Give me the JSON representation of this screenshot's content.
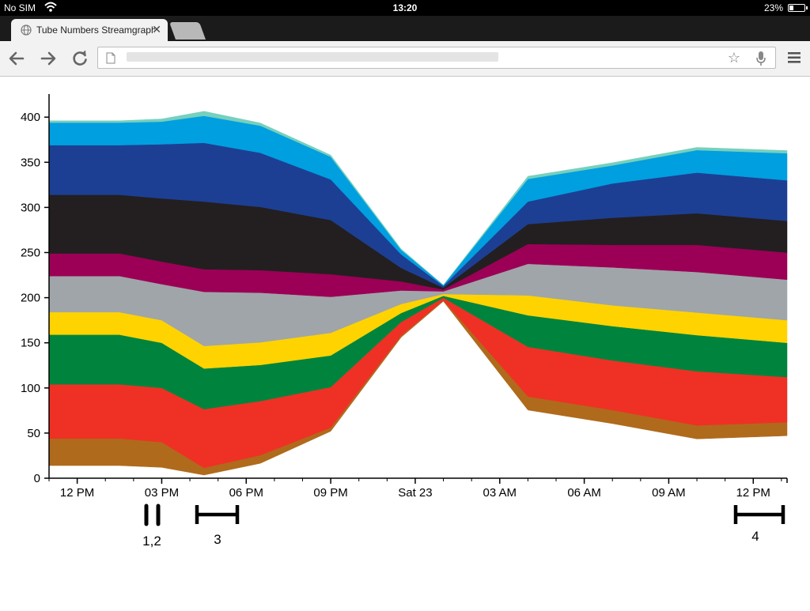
{
  "status_bar": {
    "carrier": "No SIM",
    "time": "13:20",
    "battery": "23%"
  },
  "browser": {
    "tab_title": "Tube Numbers Streamgraph",
    "close_glyph": "✕",
    "star_glyph": "☆",
    "icons": {
      "back": "back-arrow-icon",
      "forward": "forward-arrow-icon",
      "reload": "reload-icon",
      "page": "page-icon",
      "bookmark": "star-icon",
      "voice": "microphone-icon",
      "menu": "menu-icon",
      "favicon": "globe-icon"
    }
  },
  "annotations": [
    "1,2",
    "3",
    "4"
  ],
  "chart_data": {
    "type": "area",
    "y_ticks": [
      0,
      50,
      100,
      150,
      200,
      250,
      300,
      350,
      400
    ],
    "x_tick_labels": [
      "12 PM",
      "03 PM",
      "06 PM",
      "09 PM",
      "Sat 23",
      "03 AM",
      "06 AM",
      "09 AM",
      "12 PM"
    ],
    "x_range_hours": [
      11,
      37.2
    ],
    "ylim": [
      0,
      420
    ],
    "center": 205,
    "series": [
      {
        "color": "#b06a1c",
        "values": [
          30,
          30,
          28,
          8,
          9,
          4,
          2,
          1,
          15,
          15,
          15,
          15
        ]
      },
      {
        "color": "#ee3124",
        "values": [
          60,
          60,
          60,
          65,
          60,
          45,
          15,
          3,
          55,
          55,
          60,
          50
        ]
      },
      {
        "color": "#00843d",
        "values": [
          55,
          55,
          50,
          45,
          40,
          35,
          10,
          2,
          35,
          38,
          40,
          38
        ]
      },
      {
        "color": "#ffd300",
        "values": [
          25,
          25,
          25,
          25,
          25,
          25,
          10,
          2,
          22,
          23,
          25,
          25
        ]
      },
      {
        "color": "#a0a5a9",
        "values": [
          40,
          40,
          40,
          60,
          55,
          40,
          15,
          3,
          35,
          42,
          45,
          45
        ]
      },
      {
        "color": "#9b0056",
        "values": [
          25,
          25,
          25,
          25,
          25,
          25,
          10,
          2,
          22,
          25,
          30,
          30
        ]
      },
      {
        "color": "#231f20",
        "values": [
          65,
          65,
          70,
          75,
          70,
          60,
          15,
          2,
          22,
          30,
          35,
          35
        ]
      },
      {
        "color": "#1c3f94",
        "values": [
          55,
          55,
          60,
          65,
          60,
          45,
          15,
          2,
          25,
          38,
          45,
          45
        ]
      },
      {
        "color": "#009fe0",
        "values": [
          25,
          25,
          25,
          30,
          30,
          25,
          5,
          1,
          25,
          20,
          25,
          30
        ]
      },
      {
        "color": "#76d0bd",
        "values": [
          2,
          2,
          3,
          5,
          3,
          2,
          1,
          0,
          3,
          3,
          3,
          3
        ]
      }
    ],
    "x_hours": [
      11,
      13.5,
      15,
      16.5,
      18.5,
      21,
      23.5,
      25,
      28,
      31,
      34,
      37.2
    ]
  }
}
